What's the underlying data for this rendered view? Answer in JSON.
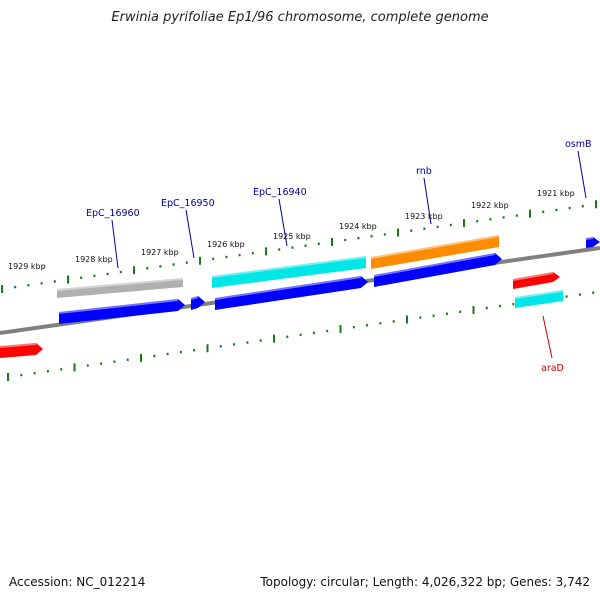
{
  "title": "Erwinia pyrifoliae Ep1/96 chromosome, complete genome",
  "footer": {
    "accession": "Accession: NC_012214",
    "topology": "Topology: circular; Length: 4,026,322 bp; Genes: 3,742"
  },
  "colors": {
    "backbone": "#808080",
    "ticks": "#1a7a1a",
    "label_blue": "#0000a0",
    "label_red": "#cc0000",
    "gene_blue": "#0000ff",
    "gene_cyan": "#00e5e5",
    "gene_gray": "#b0b0b0",
    "gene_orange": "#ff8c00",
    "gene_red": "#ff0000"
  },
  "scale_labels": [
    "1929 kbp",
    "1928 kbp",
    "1927 kbp",
    "1926 kbp",
    "1925 kbp",
    "1924 kbp",
    "1923 kbp",
    "1922 kbp",
    "1921 kbp"
  ],
  "gene_labels": [
    {
      "name": "EpC_16960",
      "color": "label_blue"
    },
    {
      "name": "EpC_16950",
      "color": "label_blue"
    },
    {
      "name": "EpC_16940",
      "color": "label_blue"
    },
    {
      "name": "rnb",
      "color": "label_blue"
    },
    {
      "name": "osmB",
      "color": "label_blue"
    },
    {
      "name": "araD",
      "color": "label_red"
    }
  ],
  "features": [
    {
      "color": "gene_gray",
      "strand": "plus"
    },
    {
      "color": "gene_blue",
      "strand": "minus"
    },
    {
      "color": "gene_blue",
      "strand": "minus"
    },
    {
      "color": "gene_cyan",
      "strand": "plus"
    },
    {
      "color": "gene_blue",
      "strand": "minus"
    },
    {
      "color": "gene_orange",
      "strand": "plus"
    },
    {
      "color": "gene_blue",
      "strand": "minus"
    },
    {
      "color": "gene_blue",
      "strand": "minus"
    },
    {
      "color": "gene_red",
      "strand": "minus"
    },
    {
      "color": "gene_cyan",
      "strand": "plus"
    },
    {
      "color": "gene_red",
      "strand": "minus"
    }
  ]
}
